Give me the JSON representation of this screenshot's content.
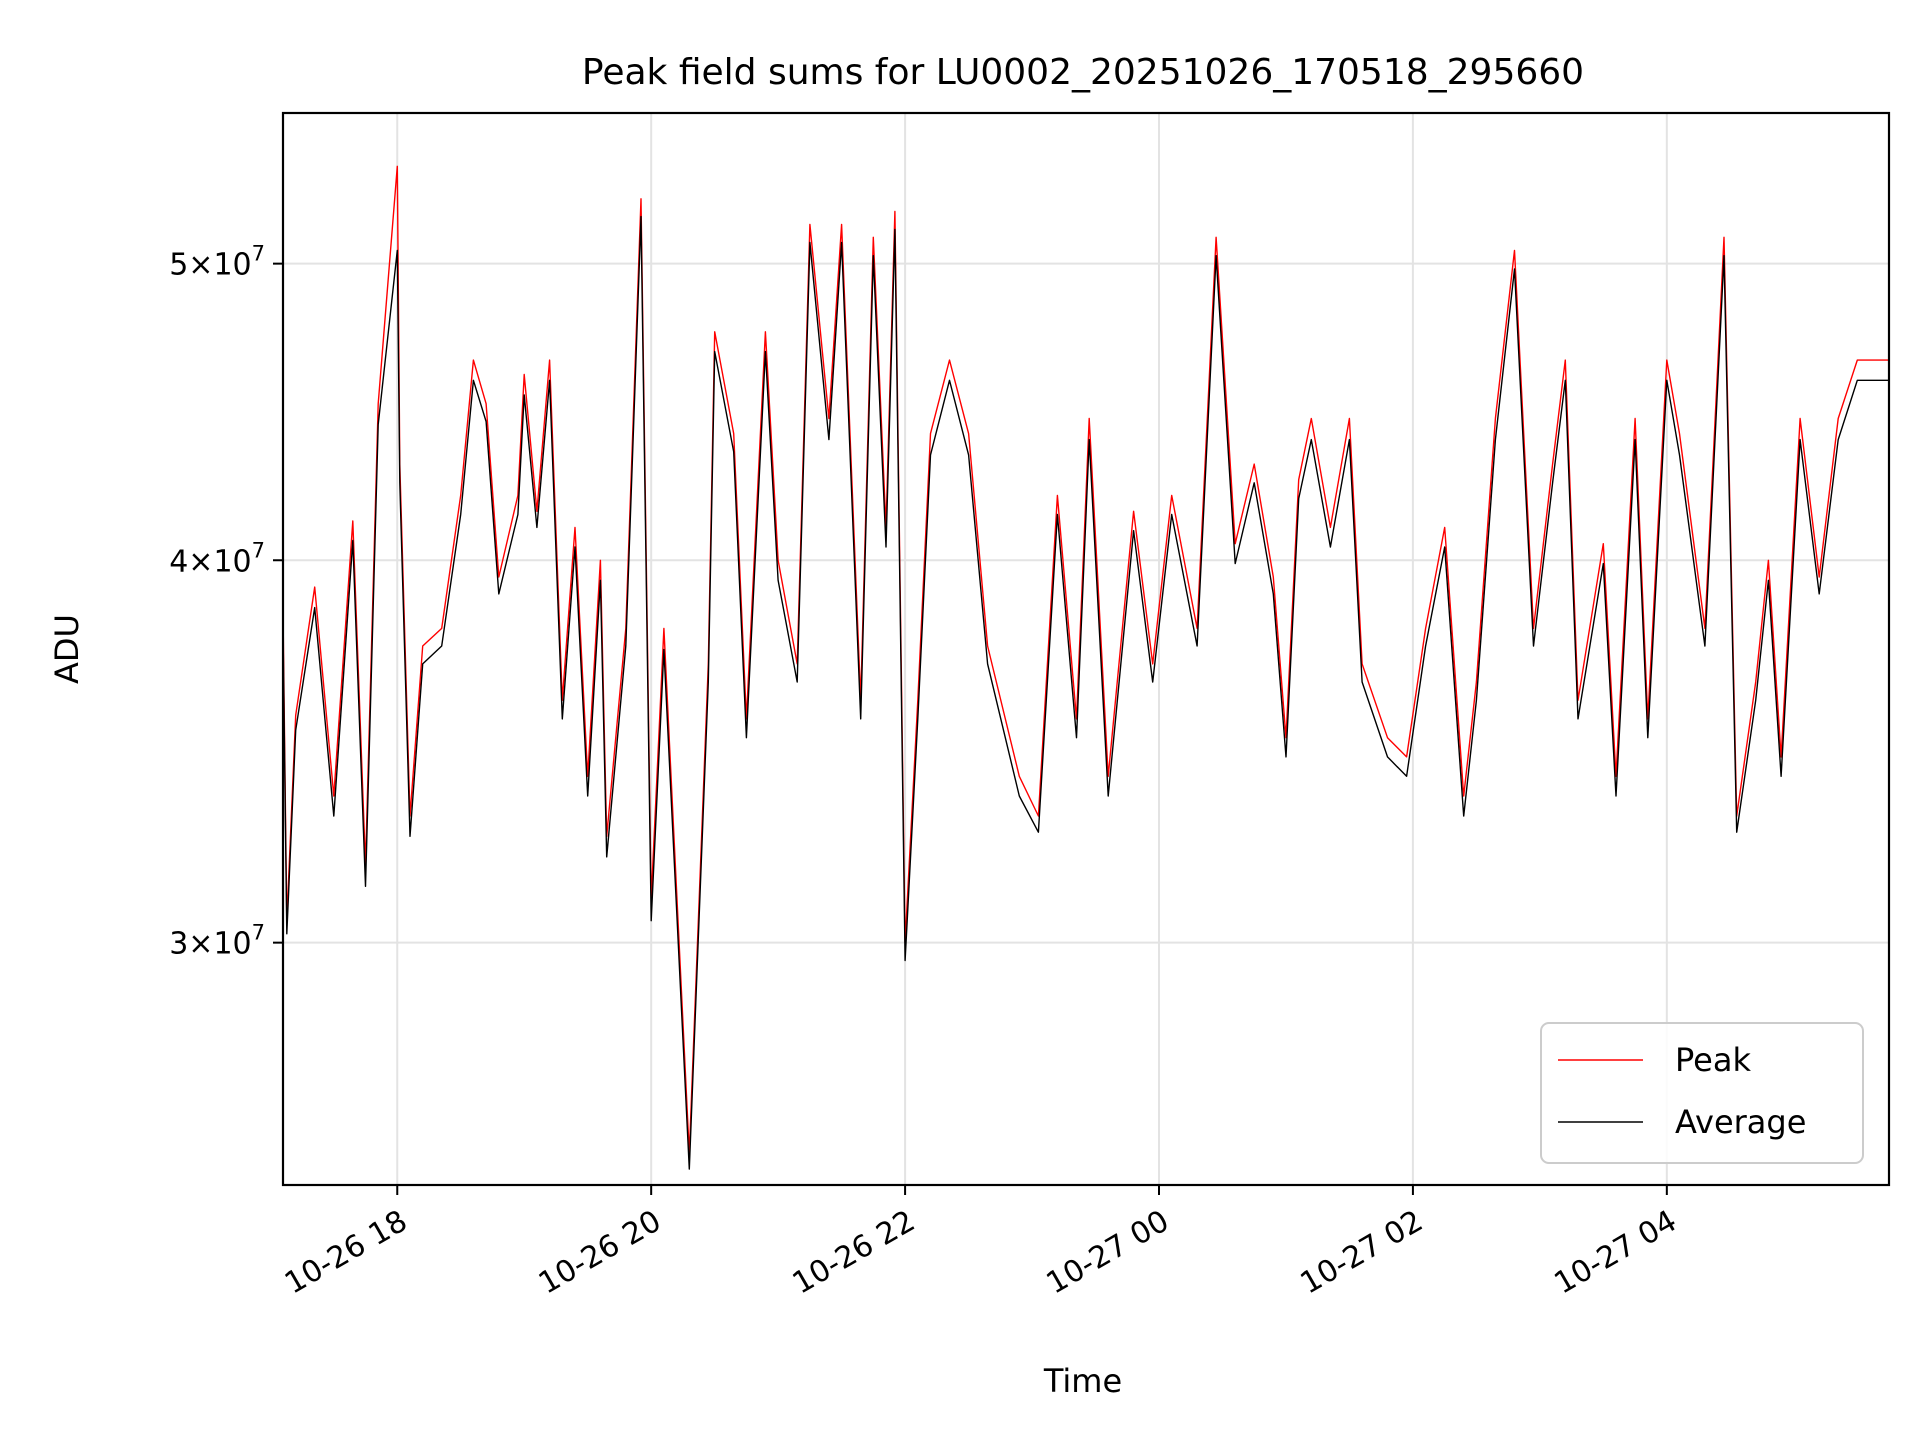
{
  "chart_data": {
    "type": "line",
    "title": "Peak field sums for LU0002_20251026_170518_295660",
    "xlabel": "Time",
    "ylabel": "ADU",
    "yscale": "log",
    "ylim": [
      25000000,
      56000000
    ],
    "xlim_hours": [
      17.1,
      29.75
    ],
    "grid": true,
    "legend_position": "lower right",
    "y_ticks": [
      {
        "value": 30000000,
        "label_base": "3×10",
        "label_exp": "7"
      },
      {
        "value": 40000000,
        "label_base": "4×10",
        "label_exp": "7"
      },
      {
        "value": 50000000,
        "label_base": "5×10",
        "label_exp": "7"
      }
    ],
    "x_ticks": [
      {
        "value": 18,
        "label": "10-26 18"
      },
      {
        "value": 20,
        "label": "10-26 20"
      },
      {
        "value": 22,
        "label": "10-26 22"
      },
      {
        "value": 24,
        "label": "10-27 00"
      },
      {
        "value": 26,
        "label": "10-27 02"
      },
      {
        "value": 28,
        "label": "10-27 04"
      }
    ],
    "x_hours": [
      17.1,
      17.13,
      17.2,
      17.35,
      17.5,
      17.65,
      17.75,
      17.85,
      18.0,
      18.02,
      18.1,
      18.2,
      18.35,
      18.5,
      18.6,
      18.7,
      18.8,
      18.95,
      19.0,
      19.1,
      19.2,
      19.3,
      19.4,
      19.5,
      19.6,
      19.65,
      19.8,
      19.92,
      20.0,
      20.1,
      20.3,
      20.45,
      20.5,
      20.65,
      20.75,
      20.9,
      21.0,
      21.15,
      21.25,
      21.4,
      21.5,
      21.65,
      21.75,
      21.85,
      21.92,
      22.0,
      22.1,
      22.2,
      22.35,
      22.5,
      22.65,
      22.9,
      23.05,
      23.2,
      23.35,
      23.45,
      23.6,
      23.8,
      23.95,
      24.1,
      24.3,
      24.45,
      24.6,
      24.75,
      24.9,
      25.0,
      25.1,
      25.2,
      25.35,
      25.5,
      25.6,
      25.8,
      25.95,
      26.1,
      26.25,
      26.4,
      26.5,
      26.65,
      26.8,
      26.95,
      27.1,
      27.2,
      27.3,
      27.5,
      27.6,
      27.75,
      27.85,
      28.0,
      28.1,
      28.3,
      28.45,
      28.55,
      28.7,
      28.8,
      28.9,
      29.05,
      29.2,
      29.35,
      29.5,
      29.75
    ],
    "series": [
      {
        "name": "Peak",
        "color": "#ff0000",
        "values": [
          38500000,
          30500000,
          35600000,
          39200000,
          33500000,
          41200000,
          31800000,
          45000000,
          53800000,
          43000000,
          33000000,
          37500000,
          38000000,
          42000000,
          46500000,
          45000000,
          39500000,
          42000000,
          46000000,
          41500000,
          46500000,
          36000000,
          41000000,
          34000000,
          40000000,
          32500000,
          38000000,
          52500000,
          31000000,
          38000000,
          25600000,
          37000000,
          47500000,
          44000000,
          35500000,
          47500000,
          40000000,
          37000000,
          51500000,
          44500000,
          51500000,
          36000000,
          51000000,
          41000000,
          52000000,
          30000000,
          36000000,
          44000000,
          46500000,
          44000000,
          37500000,
          34000000,
          33000000,
          42000000,
          35500000,
          44500000,
          34000000,
          41500000,
          37000000,
          42000000,
          38000000,
          51000000,
          40500000,
          43000000,
          39500000,
          35000000,
          42500000,
          44500000,
          41000000,
          44500000,
          37000000,
          35000000,
          34500000,
          38000000,
          41000000,
          33500000,
          36500000,
          44500000,
          50500000,
          38000000,
          43000000,
          46500000,
          36000000,
          40500000,
          34000000,
          44500000,
          35500000,
          46500000,
          44000000,
          38000000,
          51000000,
          33000000,
          36500000,
          40000000,
          34500000,
          44500000,
          39500000,
          44500000,
          46500000,
          46500000
        ]
      },
      {
        "name": "Average",
        "color": "#000000",
        "values": [
          38000000,
          30200000,
          35200000,
          38600000,
          33000000,
          40600000,
          31300000,
          44300000,
          50500000,
          42400000,
          32500000,
          37000000,
          37500000,
          41400000,
          45800000,
          44400000,
          39000000,
          41400000,
          45300000,
          41000000,
          45800000,
          35500000,
          40400000,
          33500000,
          39400000,
          32000000,
          37500000,
          51800000,
          30500000,
          37400000,
          25300000,
          36500000,
          46800000,
          43400000,
          35000000,
          46800000,
          39400000,
          36500000,
          50800000,
          43800000,
          50800000,
          35500000,
          50300000,
          40400000,
          51300000,
          29600000,
          35500000,
          43300000,
          45800000,
          43300000,
          37000000,
          33500000,
          32600000,
          41400000,
          35000000,
          43800000,
          33500000,
          40900000,
          36500000,
          41400000,
          37500000,
          50300000,
          39900000,
          42400000,
          39000000,
          34500000,
          41900000,
          43800000,
          40400000,
          43800000,
          36500000,
          34500000,
          34000000,
          37500000,
          40400000,
          33000000,
          36000000,
          43800000,
          49800000,
          37500000,
          42400000,
          45800000,
          35500000,
          39900000,
          33500000,
          43800000,
          35000000,
          45800000,
          43300000,
          37500000,
          50300000,
          32600000,
          36000000,
          39400000,
          34000000,
          43800000,
          39000000,
          43800000,
          45800000,
          45800000
        ]
      }
    ]
  }
}
